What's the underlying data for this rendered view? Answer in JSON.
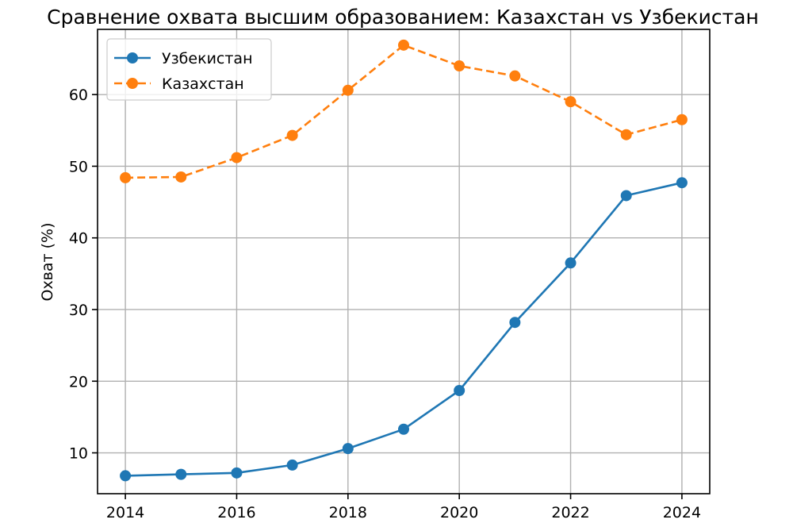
{
  "chart_data": {
    "type": "line",
    "title": "Сравнение охвата высшим образованием: Казахстан vs Узбекистан",
    "xlabel": "",
    "ylabel": "Охват (%)",
    "x": [
      2014,
      2015,
      2016,
      2017,
      2018,
      2019,
      2020,
      2021,
      2022,
      2023,
      2024
    ],
    "x_ticks": [
      2014,
      2016,
      2018,
      2020,
      2022,
      2024
    ],
    "y_ticks": [
      10,
      20,
      30,
      40,
      50,
      60
    ],
    "xlim": [
      2013.5,
      2024.5
    ],
    "ylim": [
      4.3,
      69.1
    ],
    "grid": true,
    "legend_position": "upper-left",
    "series": [
      {
        "name": "Узбекистан",
        "color": "#1f77b4",
        "line_style": "solid",
        "marker": "circle",
        "values": [
          6.8,
          7.0,
          7.2,
          8.3,
          10.6,
          13.3,
          18.7,
          28.2,
          36.5,
          45.9,
          47.7
        ]
      },
      {
        "name": "Казахстан",
        "color": "#ff7f0e",
        "line_style": "dashed",
        "marker": "circle",
        "values": [
          48.4,
          48.5,
          51.2,
          54.3,
          60.6,
          66.9,
          64.0,
          62.6,
          59.0,
          54.4,
          56.5
        ]
      }
    ]
  }
}
